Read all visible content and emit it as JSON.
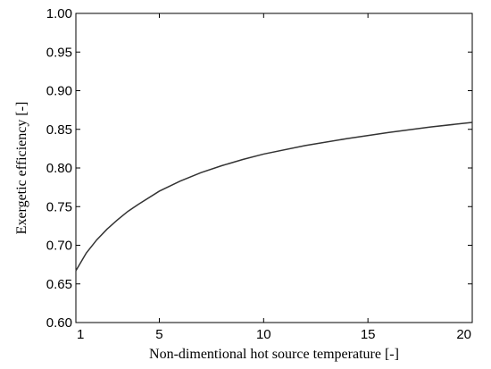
{
  "chart_data": {
    "type": "line",
    "title": "",
    "xlabel": "Non-dimentional hot source temperature [-]",
    "ylabel": "Exergetic efficiency [-]",
    "xlim": [
      1,
      20
    ],
    "ylim": [
      0.6,
      1.0
    ],
    "xticks": [
      1,
      5,
      10,
      15,
      20
    ],
    "xtick_labels": [
      "1",
      "5",
      "10",
      "15",
      "20"
    ],
    "yticks": [
      0.6,
      0.65,
      0.7,
      0.75,
      0.8,
      0.85,
      0.9,
      0.95,
      1.0
    ],
    "ytick_labels": [
      "0.60",
      "0.65",
      "0.70",
      "0.75",
      "0.80",
      "0.85",
      "0.90",
      "0.95",
      "1.00"
    ],
    "grid": false,
    "legend": "none",
    "line_color": "#333333",
    "series": [
      {
        "x": [
          1,
          1.5,
          2,
          2.5,
          3,
          3.5,
          4,
          5,
          6,
          7,
          8,
          9,
          10,
          12,
          14,
          16,
          18,
          20
        ],
        "y": [
          0.667,
          0.69,
          0.707,
          0.721,
          0.733,
          0.744,
          0.753,
          0.77,
          0.783,
          0.794,
          0.803,
          0.811,
          0.818,
          0.829,
          0.838,
          0.846,
          0.853,
          0.859
        ]
      }
    ]
  }
}
